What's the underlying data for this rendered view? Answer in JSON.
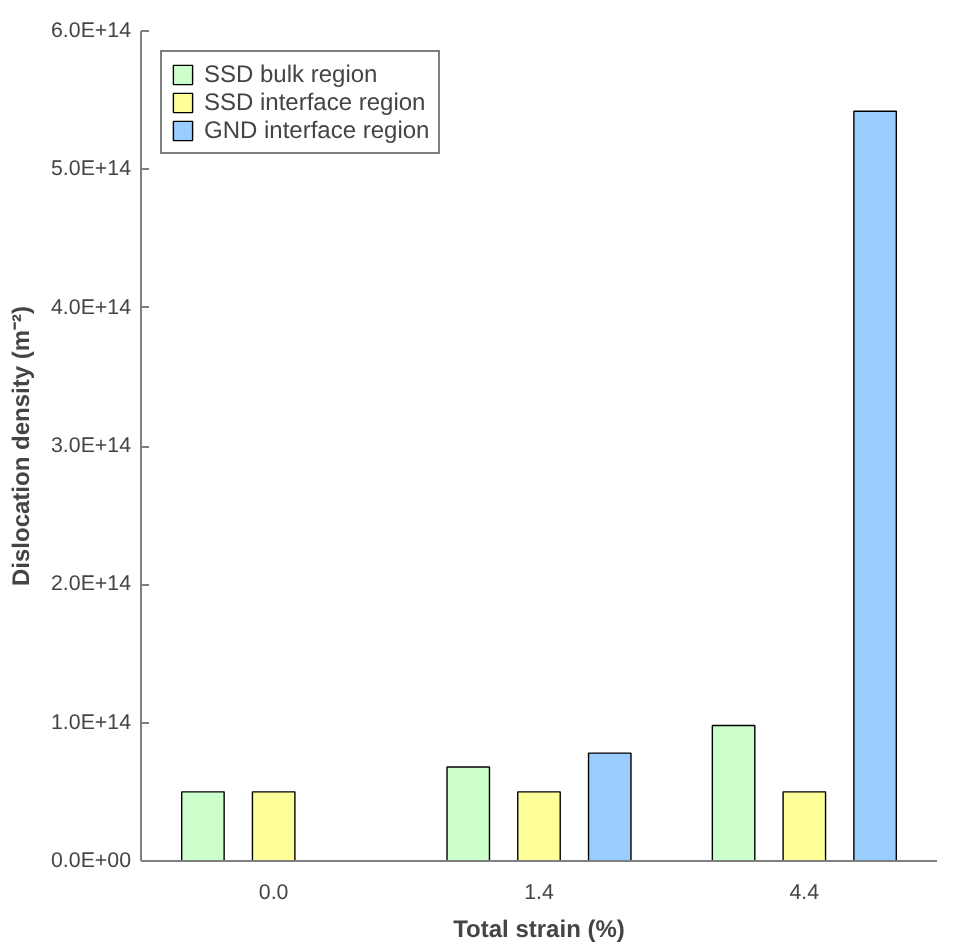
{
  "chart_data": {
    "type": "bar",
    "xlabel": "Total strain (%)",
    "ylabel": "Dislocation density (m⁻²)",
    "categories": [
      "0.0",
      "1.4",
      "4.4"
    ],
    "series": [
      {
        "name": "SSD bulk region",
        "color": "#ccffcc",
        "values": [
          50000000000000.0,
          68000000000000.0,
          98000000000000.0
        ]
      },
      {
        "name": "SSD interface region",
        "color": "#ffff99",
        "values": [
          50000000000000.0,
          50000000000000.0,
          50000000000000.0
        ]
      },
      {
        "name": "GND interface region",
        "color": "#99ccff",
        "values": [
          null,
          78000000000000.0,
          542000000000000.0
        ]
      }
    ],
    "ylim": [
      0,
      600000000000000.0
    ],
    "yticks": [
      {
        "value": 0,
        "label": "0.0E+00"
      },
      {
        "value": 100000000000000.0,
        "label": "1.0E+14"
      },
      {
        "value": 200000000000000.0,
        "label": "2.0E+14"
      },
      {
        "value": 300000000000000.0,
        "label": "3.0E+14"
      },
      {
        "value": 400000000000000.0,
        "label": "4.0E+14"
      },
      {
        "value": 500000000000000.0,
        "label": "5.0E+14"
      },
      {
        "value": 600000000000000.0,
        "label": "6.0E+14"
      }
    ],
    "grid": false,
    "legend": "top left"
  }
}
